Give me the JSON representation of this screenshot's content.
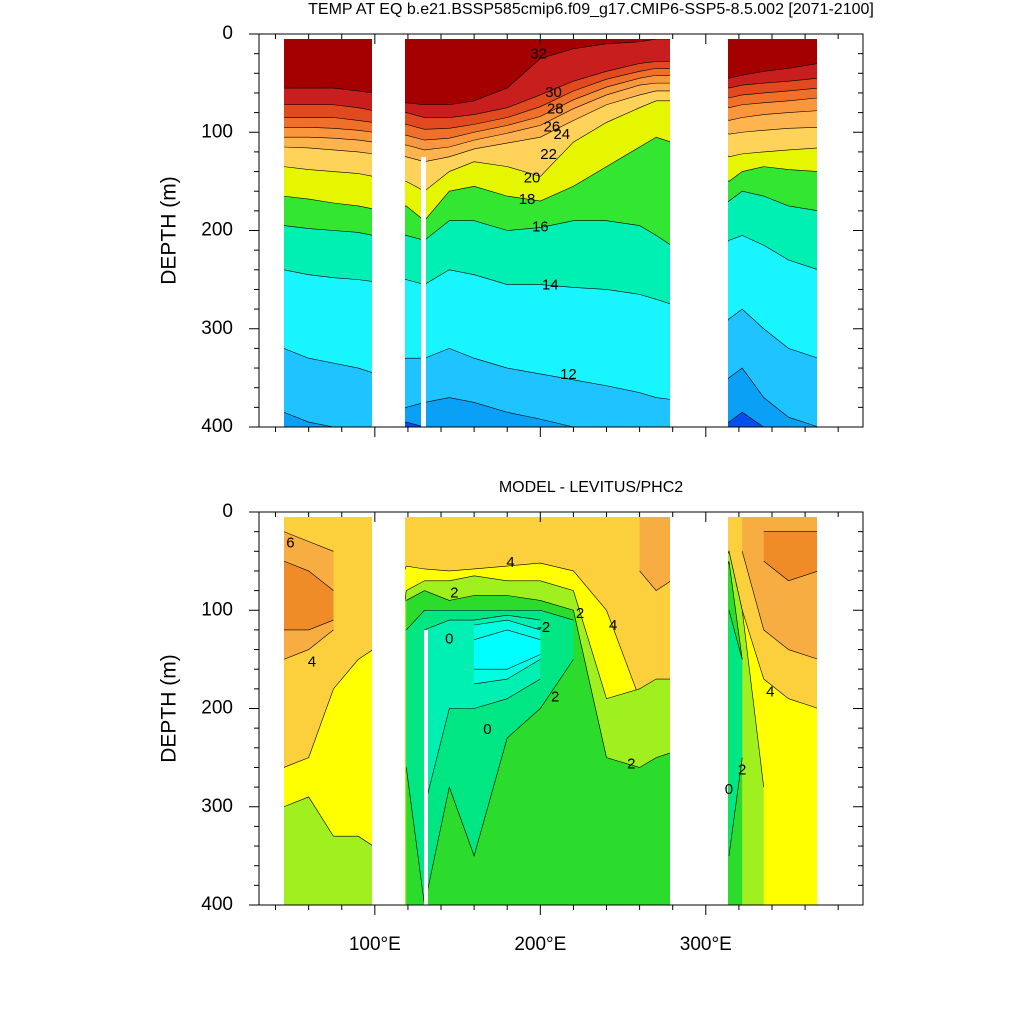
{
  "chart_data": [
    {
      "type": "contour",
      "title": "TEMP AT EQ b.e21.BSSP585cmip6.f09_g17.CMIP6-SSP5-8.5.002 [2071-2100]",
      "ylabel": "DEPTH (m)",
      "xlim": [
        30,
        395
      ],
      "ylim": [
        400,
        0
      ],
      "xticks": [
        100,
        200,
        300
      ],
      "xminorticks": [
        40,
        60,
        80,
        120,
        140,
        160,
        180,
        220,
        240,
        260,
        280,
        320,
        340,
        360,
        380
      ],
      "yticks": [
        0,
        100,
        200,
        300,
        400
      ],
      "yminorticks": [
        20,
        40,
        60,
        80,
        120,
        140,
        160,
        180,
        220,
        240,
        260,
        280,
        320,
        340,
        360,
        380
      ],
      "background": "#a50000",
      "x": [
        45,
        60,
        75,
        90,
        99,
        119,
        130,
        145,
        160,
        180,
        200,
        220,
        240,
        260,
        270,
        279,
        314,
        322,
        335,
        350,
        368
      ],
      "bands": [
        {
          "color": "#c81e1e",
          "top": [
            55,
            55,
            55,
            58,
            60,
            70,
            72,
            72,
            68,
            55,
            25,
            15,
            10,
            8,
            5,
            5,
            45,
            42,
            38,
            35,
            30
          ]
        },
        {
          "color": "#e04a1e",
          "top": [
            72,
            72,
            72,
            75,
            78,
            80,
            85,
            85,
            82,
            75,
            62,
            48,
            38,
            30,
            28,
            28,
            55,
            52,
            50,
            48,
            45
          ]
        },
        {
          "color": "#f0702a",
          "top": [
            85,
            85,
            85,
            88,
            90,
            92,
            97,
            96,
            92,
            85,
            74,
            58,
            46,
            38,
            35,
            35,
            65,
            62,
            60,
            58,
            55
          ]
        },
        {
          "color": "#fa963c",
          "top": [
            95,
            95,
            96,
            98,
            100,
            103,
            108,
            106,
            100,
            93,
            84,
            67,
            54,
            45,
            42,
            42,
            75,
            72,
            70,
            68,
            65
          ]
        },
        {
          "color": "#ffb450",
          "top": [
            105,
            105,
            106,
            108,
            110,
            113,
            118,
            115,
            108,
            101,
            93,
            76,
            62,
            52,
            50,
            50,
            88,
            85,
            82,
            80,
            78
          ]
        },
        {
          "color": "#ffd25a",
          "top": [
            115,
            116,
            118,
            120,
            122,
            125,
            130,
            125,
            117,
            111,
            105,
            88,
            72,
            62,
            58,
            58,
            102,
            100,
            98,
            96,
            95
          ]
        },
        {
          "color": "#e6f500",
          "top": [
            135,
            138,
            140,
            142,
            145,
            150,
            160,
            140,
            130,
            135,
            145,
            110,
            90,
            75,
            68,
            68,
            125,
            122,
            120,
            118,
            116
          ]
        },
        {
          "color": "#32e632",
          "top": [
            165,
            168,
            172,
            175,
            178,
            175,
            190,
            160,
            155,
            165,
            170,
            155,
            135,
            115,
            105,
            110,
            150,
            140,
            135,
            138,
            140
          ]
        },
        {
          "color": "#00f0b4",
          "top": [
            195,
            198,
            200,
            202,
            205,
            205,
            210,
            190,
            190,
            200,
            197,
            190,
            190,
            195,
            205,
            215,
            170,
            160,
            165,
            175,
            180
          ]
        },
        {
          "color": "#19f5ff",
          "top": [
            240,
            245,
            248,
            250,
            252,
            250,
            255,
            240,
            245,
            255,
            255,
            258,
            260,
            265,
            270,
            275,
            210,
            205,
            215,
            230,
            240
          ]
        },
        {
          "color": "#1ec3ff",
          "top": [
            320,
            330,
            335,
            340,
            345,
            330,
            330,
            320,
            330,
            340,
            346,
            352,
            358,
            365,
            370,
            372,
            290,
            280,
            300,
            320,
            330
          ]
        },
        {
          "color": "#0aa0f5",
          "top": [
            385,
            395,
            400,
            400,
            400,
            380,
            375,
            370,
            375,
            385,
            392,
            400,
            400,
            400,
            400,
            400,
            350,
            340,
            370,
            390,
            400
          ]
        },
        {
          "color": "#0050f0",
          "top": [
            400,
            400,
            400,
            400,
            400,
            395,
            400,
            400,
            400,
            400,
            400,
            400,
            400,
            400,
            400,
            400,
            395,
            385,
            400,
            400,
            400
          ]
        }
      ],
      "contour_labels": [
        {
          "value": 32,
          "x": 199,
          "y": 21
        },
        {
          "value": 30,
          "x": 208,
          "y": 60
        },
        {
          "value": 28,
          "x": 209,
          "y": 77
        },
        {
          "value": 26,
          "x": 207,
          "y": 95
        },
        {
          "value": 24,
          "x": 213,
          "y": 103
        },
        {
          "value": 22,
          "x": 205,
          "y": 123
        },
        {
          "value": 20,
          "x": 195,
          "y": 147
        },
        {
          "value": 18,
          "x": 192,
          "y": 169
        },
        {
          "value": 16,
          "x": 200,
          "y": 197
        },
        {
          "value": 14,
          "x": 206,
          "y": 256
        },
        {
          "value": 12,
          "x": 217,
          "y": 347
        }
      ]
    },
    {
      "type": "contour",
      "title": "MODEL - LEVITUS/PHC2",
      "ylabel": "DEPTH (m)",
      "xlim": [
        30,
        395
      ],
      "ylim": [
        400,
        0
      ],
      "xticks": [
        {
          "value": 100,
          "label": "100°E"
        },
        {
          "value": 200,
          "label": "200°E"
        },
        {
          "value": 300,
          "label": "300°E"
        }
      ],
      "xminorticks": [
        40,
        60,
        80,
        120,
        140,
        160,
        180,
        220,
        240,
        260,
        280,
        320,
        340,
        360,
        380
      ],
      "yticks": [
        0,
        100,
        200,
        300,
        400
      ],
      "yminorticks": [
        20,
        40,
        60,
        80,
        120,
        140,
        160,
        180,
        220,
        240,
        260,
        280,
        320,
        340,
        360,
        380
      ],
      "background": "#ffff00",
      "x": [
        45,
        60,
        75,
        90,
        99,
        119,
        130,
        145,
        160,
        180,
        200,
        220,
        240,
        260,
        270,
        279,
        314,
        322,
        335,
        350,
        368
      ],
      "bands": [
        {
          "color": "#fccf3c",
          "top": [
            0,
            0,
            0,
            0,
            0,
            0,
            0,
            0,
            0,
            0,
            0,
            0,
            0,
            0,
            0,
            0,
            0,
            0,
            0,
            0,
            0
          ],
          "bottom": [
            260,
            250,
            180,
            150,
            140,
            55,
            58,
            60,
            58,
            55,
            52,
            60,
            100,
            190,
            200,
            205,
            40,
            100,
            170,
            190,
            200
          ]
        },
        {
          "color": "#f8ad42",
          "top": [
            20,
            30,
            40,
            null,
            null,
            null,
            null,
            null,
            null,
            null,
            null,
            null,
            null,
            0,
            0,
            0,
            null,
            0,
            0,
            0,
            0
          ],
          "bottom": [
            150,
            140,
            120,
            null,
            null,
            null,
            null,
            null,
            null,
            null,
            null,
            null,
            null,
            60,
            80,
            70,
            null,
            40,
            120,
            140,
            150
          ]
        },
        {
          "color": "#f08c28",
          "top": [
            50,
            60,
            80,
            null,
            null,
            null,
            null,
            null,
            null,
            null,
            null,
            null,
            null,
            null,
            10,
            null,
            null,
            null,
            20,
            20,
            20
          ],
          "bottom": [
            120,
            120,
            110,
            null,
            null,
            null,
            null,
            null,
            null,
            null,
            null,
            null,
            null,
            null,
            40,
            null,
            null,
            null,
            50,
            70,
            60
          ]
        },
        {
          "color": "#a0f020",
          "top": [
            300,
            290,
            330,
            330,
            340,
            80,
            70,
            70,
            65,
            70,
            70,
            80,
            190,
            180,
            170,
            170,
            40,
            100,
            280,
            null,
            null
          ],
          "bottom": [
            400,
            400,
            400,
            400,
            400,
            400,
            400,
            400,
            400,
            400,
            400,
            400,
            400,
            400,
            400,
            400,
            400,
            400,
            400,
            null,
            null
          ]
        },
        {
          "color": "#2cdc2c",
          "top": [
            360,
            null,
            null,
            null,
            null,
            90,
            80,
            90,
            85,
            85,
            90,
            100,
            250,
            260,
            250,
            245,
            50,
            150,
            null,
            null,
            null
          ],
          "bottom": [
            400,
            null,
            null,
            null,
            null,
            400,
            400,
            400,
            400,
            400,
            400,
            400,
            400,
            400,
            400,
            400,
            400,
            400,
            null,
            null,
            null
          ]
        },
        {
          "color": "#00e682",
          "top": [
            null,
            null,
            null,
            null,
            null,
            120,
            100,
            100,
            100,
            100,
            100,
            110,
            null,
            null,
            null,
            null,
            100,
            150,
            null,
            null,
            null
          ],
          "bottom": [
            null,
            null,
            null,
            null,
            null,
            260,
            400,
            280,
            350,
            230,
            200,
            150,
            null,
            null,
            null,
            null,
            350,
            250,
            null,
            null,
            null
          ]
        },
        {
          "color": "#00f0b4",
          "top": [
            null,
            null,
            null,
            null,
            null,
            null,
            120,
            110,
            110,
            105,
            110,
            null,
            null,
            null,
            null,
            null,
            120,
            null,
            null,
            null,
            null
          ],
          "bottom": [
            null,
            null,
            null,
            null,
            null,
            null,
            300,
            200,
            200,
            190,
            170,
            null,
            null,
            null,
            null,
            null,
            300,
            null,
            null,
            null,
            null
          ]
        },
        {
          "color": "#00ffe0",
          "top": [
            null,
            null,
            null,
            null,
            null,
            null,
            null,
            null,
            115,
            110,
            120,
            null,
            null,
            null,
            null,
            null,
            null,
            null,
            null,
            null,
            null
          ],
          "bottom": [
            null,
            null,
            null,
            null,
            null,
            null,
            null,
            null,
            175,
            170,
            150,
            null,
            null,
            null,
            null,
            null,
            null,
            null,
            null,
            null,
            null
          ]
        },
        {
          "color": "#00ffff",
          "top": [
            null,
            null,
            null,
            null,
            null,
            null,
            null,
            null,
            130,
            120,
            130,
            null,
            null,
            null,
            null,
            null,
            null,
            null,
            null,
            null,
            null
          ],
          "bottom": [
            null,
            null,
            null,
            null,
            null,
            null,
            null,
            null,
            160,
            160,
            145,
            null,
            null,
            null,
            null,
            null,
            null,
            null,
            null,
            null,
            null
          ]
        }
      ],
      "contour_labels": [
        {
          "value": 6,
          "x": 49,
          "y": 32
        },
        {
          "value": 4,
          "x": 182,
          "y": 52
        },
        {
          "value": 2,
          "x": 148,
          "y": 83
        },
        {
          "value": -2,
          "x": 202,
          "y": 118
        },
        {
          "value": 0,
          "x": 145,
          "y": 130
        },
        {
          "value": 2,
          "x": 224,
          "y": 104
        },
        {
          "value": 4,
          "x": 244,
          "y": 116
        },
        {
          "value": 4,
          "x": 62,
          "y": 153
        },
        {
          "value": 2,
          "x": 209,
          "y": 189
        },
        {
          "value": 0,
          "x": 168,
          "y": 222
        },
        {
          "value": 2,
          "x": 255,
          "y": 257
        },
        {
          "value": 4,
          "x": 339,
          "y": 184
        },
        {
          "value": 2,
          "x": 322,
          "y": 263
        },
        {
          "value": 0,
          "x": 314,
          "y": 283
        }
      ]
    }
  ]
}
